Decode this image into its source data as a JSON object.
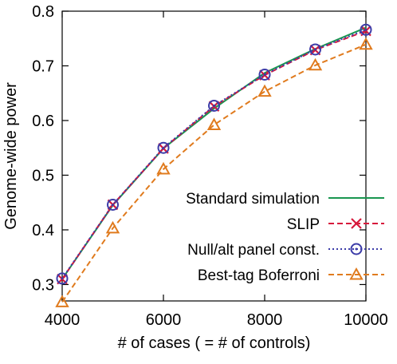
{
  "chart_data": {
    "type": "line",
    "title": "",
    "xlabel": "# of cases ( = # of controls)",
    "ylabel": "Genome-wide power",
    "xlim": [
      4000,
      10000
    ],
    "ylim": [
      0.27,
      0.8
    ],
    "xticks": [
      "4000",
      "6000",
      "8000",
      "10000"
    ],
    "yticks": [
      "0.3",
      "0.4",
      "0.5",
      "0.6",
      "0.7",
      "0.8"
    ],
    "grid": false,
    "legend_position": "bottom-right",
    "x": [
      4000,
      5000,
      6000,
      7000,
      8000,
      9000,
      10000
    ],
    "series": [
      {
        "name": "Standard simulation",
        "color": "#1a9650",
        "dash": "solid",
        "marker": "none",
        "values": [
          0.31,
          0.445,
          0.549,
          0.622,
          0.687,
          0.731,
          0.77
        ]
      },
      {
        "name": "SLIP",
        "color": "#d7193c",
        "dash": "dashed",
        "marker": "x",
        "values": [
          0.31,
          0.446,
          0.549,
          0.626,
          0.683,
          0.729,
          0.764
        ]
      },
      {
        "name": "Null/alt panel const.",
        "color": "#3c3ca8",
        "dash": "dotted",
        "marker": "circle",
        "values": [
          0.311,
          0.446,
          0.55,
          0.627,
          0.684,
          0.73,
          0.766
        ]
      },
      {
        "name": "Best-tag Boferroni",
        "color": "#e07b1e",
        "dash": "dashed",
        "marker": "triangle",
        "values": [
          0.268,
          0.403,
          0.511,
          0.592,
          0.653,
          0.701,
          0.739
        ]
      }
    ]
  }
}
